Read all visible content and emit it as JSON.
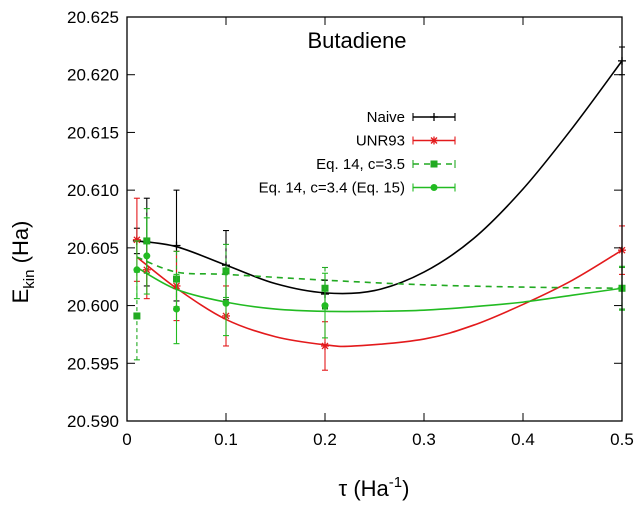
{
  "chart_data": {
    "type": "line",
    "title": "Butadiene",
    "xlabel": "τ (Ha",
    "xlabel_sup": "-1",
    "xlabel_close": ")",
    "ylabel": "E",
    "ylabel_sub": "kin",
    "ylabel_unit": " (Ha)",
    "xlim": [
      0,
      0.5
    ],
    "ylim": [
      20.59,
      20.625
    ],
    "grid": false,
    "legend_position": "top-right",
    "x_ticks": [
      0,
      0.1,
      0.2,
      0.3,
      0.4,
      0.5
    ],
    "x_tick_labels": [
      "0",
      "0.1",
      "0.2",
      "0.3",
      "0.4",
      "0.5"
    ],
    "y_ticks": [
      20.59,
      20.595,
      20.6,
      20.605,
      20.61,
      20.615,
      20.62,
      20.625
    ],
    "y_tick_labels": [
      "20.590",
      "20.595",
      "20.600",
      "20.605",
      "20.610",
      "20.615",
      "20.620",
      "20.625"
    ],
    "series": [
      {
        "name": "Naive",
        "color": "#000000",
        "marker": "plus",
        "dashed": false,
        "points": [
          {
            "x": 0.01,
            "y": 20.6056,
            "err": 0.0011
          },
          {
            "x": 0.02,
            "y": 20.6055,
            "err": 0.0038
          },
          {
            "x": 0.05,
            "y": 20.6052,
            "err": 0.0048
          },
          {
            "x": 0.1,
            "y": 20.6035,
            "err": 0.003
          },
          {
            "x": 0.2,
            "y": 20.601,
            "err": 0.0012
          },
          {
            "x": 0.5,
            "y": 20.6212,
            "err": 0.0012
          }
        ],
        "fit": [
          [
            0.01,
            20.6056
          ],
          [
            0.05,
            20.6051
          ],
          [
            0.1,
            20.6035
          ],
          [
            0.15,
            20.6019
          ],
          [
            0.2,
            20.6011
          ],
          [
            0.25,
            20.6013
          ],
          [
            0.3,
            20.6029
          ],
          [
            0.35,
            20.6058
          ],
          [
            0.4,
            20.6101
          ],
          [
            0.45,
            20.6154
          ],
          [
            0.5,
            20.6212
          ]
        ]
      },
      {
        "name": "UNR93",
        "color": "#e31a1c",
        "marker": "star",
        "dashed": false,
        "points": [
          {
            "x": 0.01,
            "y": 20.6057,
            "err": 0.0036
          },
          {
            "x": 0.02,
            "y": 20.6031,
            "err": 0.0025
          },
          {
            "x": 0.05,
            "y": 20.6017,
            "err": 0.003
          },
          {
            "x": 0.1,
            "y": 20.5991,
            "err": 0.0026
          },
          {
            "x": 0.2,
            "y": 20.5965,
            "err": 0.0021
          },
          {
            "x": 0.5,
            "y": 20.6048,
            "err": 0.0021
          }
        ],
        "fit": [
          [
            0.01,
            20.6042
          ],
          [
            0.05,
            20.6015
          ],
          [
            0.1,
            20.5988
          ],
          [
            0.15,
            20.5973
          ],
          [
            0.2,
            20.5966
          ],
          [
            0.23,
            20.5965
          ],
          [
            0.3,
            20.5971
          ],
          [
            0.35,
            20.5983
          ],
          [
            0.4,
            20.6001
          ],
          [
            0.45,
            20.6022
          ],
          [
            0.5,
            20.6048
          ]
        ]
      },
      {
        "name": "Eq. 14, c=3.5",
        "color": "#22aa22",
        "marker": "square",
        "dashed": true,
        "points": [
          {
            "x": 0.01,
            "y": 20.5991,
            "err": 0.0038
          },
          {
            "x": 0.02,
            "y": 20.6056,
            "err": 0.0028
          },
          {
            "x": 0.05,
            "y": 20.6023,
            "err": 0.0024
          },
          {
            "x": 0.1,
            "y": 20.603,
            "err": 0.0023
          },
          {
            "x": 0.2,
            "y": 20.6015,
            "err": 0.0018
          },
          {
            "x": 0.5,
            "y": 20.6015,
            "err": 0.0018
          }
        ],
        "fit": [
          [
            0.01,
            20.6042
          ],
          [
            0.05,
            20.6029
          ],
          [
            0.1,
            20.6027
          ],
          [
            0.2,
            20.6022
          ],
          [
            0.3,
            20.6018
          ],
          [
            0.4,
            20.6016
          ],
          [
            0.5,
            20.6015
          ]
        ]
      },
      {
        "name": "Eq. 14, c=3.4 (Eq. 15)",
        "color": "#22bb22",
        "marker": "circle",
        "dashed": false,
        "points": [
          {
            "x": 0.01,
            "y": 20.6031,
            "err": 0.0025
          },
          {
            "x": 0.02,
            "y": 20.6043,
            "err": 0.0033
          },
          {
            "x": 0.05,
            "y": 20.5997,
            "err": 0.003
          },
          {
            "x": 0.1,
            "y": 20.6002,
            "err": 0.0028
          },
          {
            "x": 0.2,
            "y": 20.6,
            "err": 0.0028
          },
          {
            "x": 0.5,
            "y": 20.6015,
            "err": 0.0019
          }
        ],
        "fit": [
          [
            0.01,
            20.6033
          ],
          [
            0.05,
            20.6014
          ],
          [
            0.1,
            20.6003
          ],
          [
            0.15,
            20.5997
          ],
          [
            0.2,
            20.5995
          ],
          [
            0.25,
            20.5995
          ],
          [
            0.3,
            20.5996
          ],
          [
            0.35,
            20.5999
          ],
          [
            0.4,
            20.6003
          ],
          [
            0.45,
            20.6009
          ],
          [
            0.5,
            20.6015
          ]
        ]
      }
    ]
  }
}
